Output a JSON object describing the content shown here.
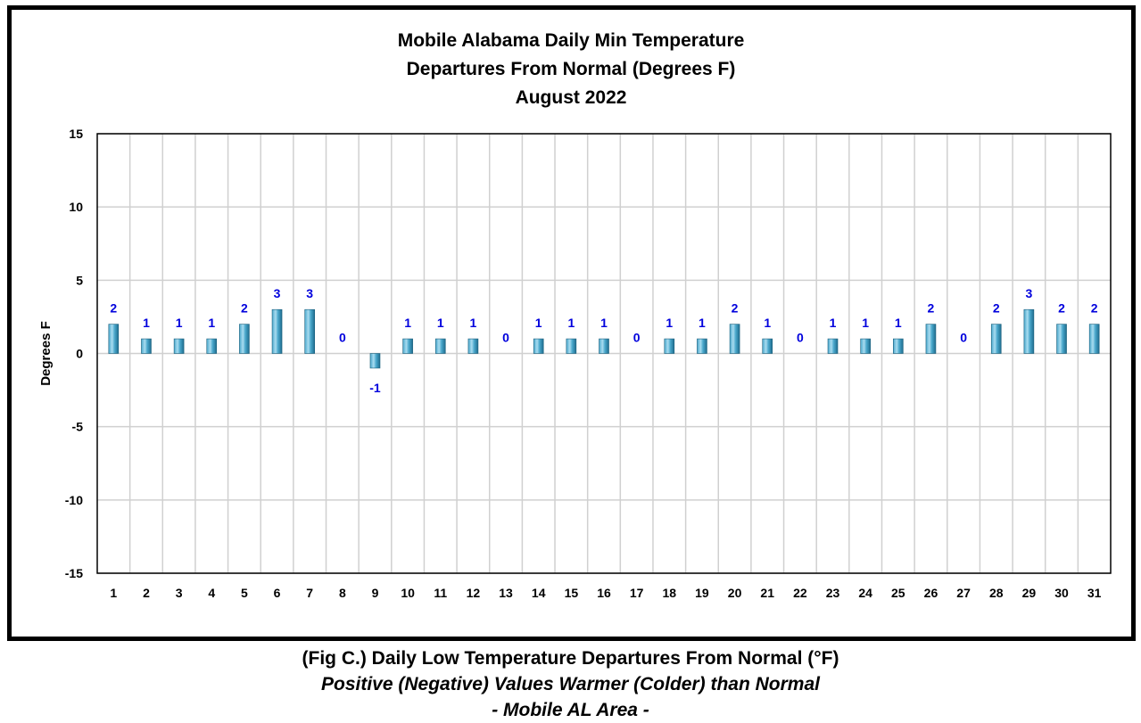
{
  "chart_data": {
    "type": "bar",
    "title": [
      "Mobile Alabama Daily Min Temperature",
      "Departures From Normal (Degrees F)",
      "August 2022"
    ],
    "xlabel": "",
    "ylabel": "Degrees F",
    "ylim": [
      -15,
      15
    ],
    "yticks": [
      "15",
      "10",
      "5",
      "0",
      "-5",
      "-10",
      "-15"
    ],
    "ytick_values": [
      15,
      10,
      5,
      0,
      -5,
      -10,
      -15
    ],
    "categories": [
      "1",
      "2",
      "3",
      "4",
      "5",
      "6",
      "7",
      "8",
      "9",
      "10",
      "11",
      "12",
      "13",
      "14",
      "15",
      "16",
      "17",
      "18",
      "19",
      "20",
      "21",
      "22",
      "23",
      "24",
      "25",
      "26",
      "27",
      "28",
      "29",
      "30",
      "31"
    ],
    "values": [
      2,
      1,
      1,
      1,
      2,
      3,
      3,
      0,
      -1,
      1,
      1,
      1,
      0,
      1,
      1,
      1,
      0,
      1,
      1,
      2,
      1,
      0,
      1,
      1,
      1,
      2,
      0,
      2,
      3,
      2,
      2
    ],
    "data_labels": true,
    "grid": true,
    "colors": {
      "bar_light": "#a9dcf0",
      "bar_mid": "#4aa8cc",
      "bar_dark": "#1e6c8e",
      "label": "#0000dd",
      "grid": "#d0d0d0"
    }
  },
  "caption": {
    "line1": "(Fig C.) Daily Low Temperature Departures From Normal (°F)",
    "line2": "Positive (Negative) Values Warmer (Colder) than Normal",
    "line3": "- Mobile AL Area -"
  }
}
